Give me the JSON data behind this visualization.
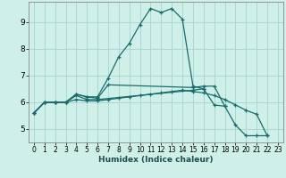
{
  "title": "",
  "xlabel": "Humidex (Indice chaleur)",
  "background_color": "#cef0e8",
  "grid_color": "#aad8d0",
  "line_color": "#1a6b6b",
  "xlim": [
    -0.5,
    23.5
  ],
  "ylim": [
    4.5,
    9.75
  ],
  "yticks": [
    5,
    6,
    7,
    8,
    9
  ],
  "xticks": [
    0,
    1,
    2,
    3,
    4,
    5,
    6,
    7,
    8,
    9,
    10,
    11,
    12,
    13,
    14,
    15,
    16,
    17,
    18,
    19,
    20,
    21,
    22,
    23
  ],
  "series": [
    {
      "x": [
        0,
        1,
        2,
        3,
        4,
        5,
        6,
        7,
        8,
        9,
        10,
        11,
        12,
        13,
        14,
        15,
        16,
        17,
        18,
        19,
        20,
        21,
        22
      ],
      "y": [
        5.6,
        6.0,
        6.0,
        6.0,
        6.3,
        6.2,
        6.2,
        6.9,
        7.7,
        8.2,
        8.9,
        9.5,
        9.35,
        9.5,
        9.1,
        6.6,
        6.5,
        5.9,
        5.85,
        5.15,
        4.75,
        4.75,
        4.75
      ]
    },
    {
      "x": [
        0,
        1,
        2,
        3,
        4,
        5,
        6,
        7,
        15,
        16,
        17,
        18
      ],
      "y": [
        5.6,
        6.0,
        6.0,
        6.0,
        6.3,
        6.2,
        6.15,
        6.65,
        6.55,
        6.6,
        6.6,
        5.85
      ]
    },
    {
      "x": [
        0,
        1,
        2,
        3,
        4,
        5,
        6,
        15,
        16
      ],
      "y": [
        5.6,
        6.0,
        6.0,
        6.0,
        6.25,
        6.1,
        6.1,
        6.45,
        6.5
      ]
    },
    {
      "x": [
        0,
        1,
        2,
        3,
        4,
        5,
        6,
        7,
        8,
        9,
        10,
        11,
        12,
        13,
        14,
        15,
        16,
        17,
        18,
        19,
        20,
        21,
        22
      ],
      "y": [
        5.6,
        6.0,
        6.0,
        6.0,
        6.1,
        6.05,
        6.05,
        6.1,
        6.15,
        6.2,
        6.25,
        6.3,
        6.35,
        6.4,
        6.45,
        6.4,
        6.35,
        6.25,
        6.1,
        5.9,
        5.7,
        5.55,
        4.75
      ]
    }
  ]
}
